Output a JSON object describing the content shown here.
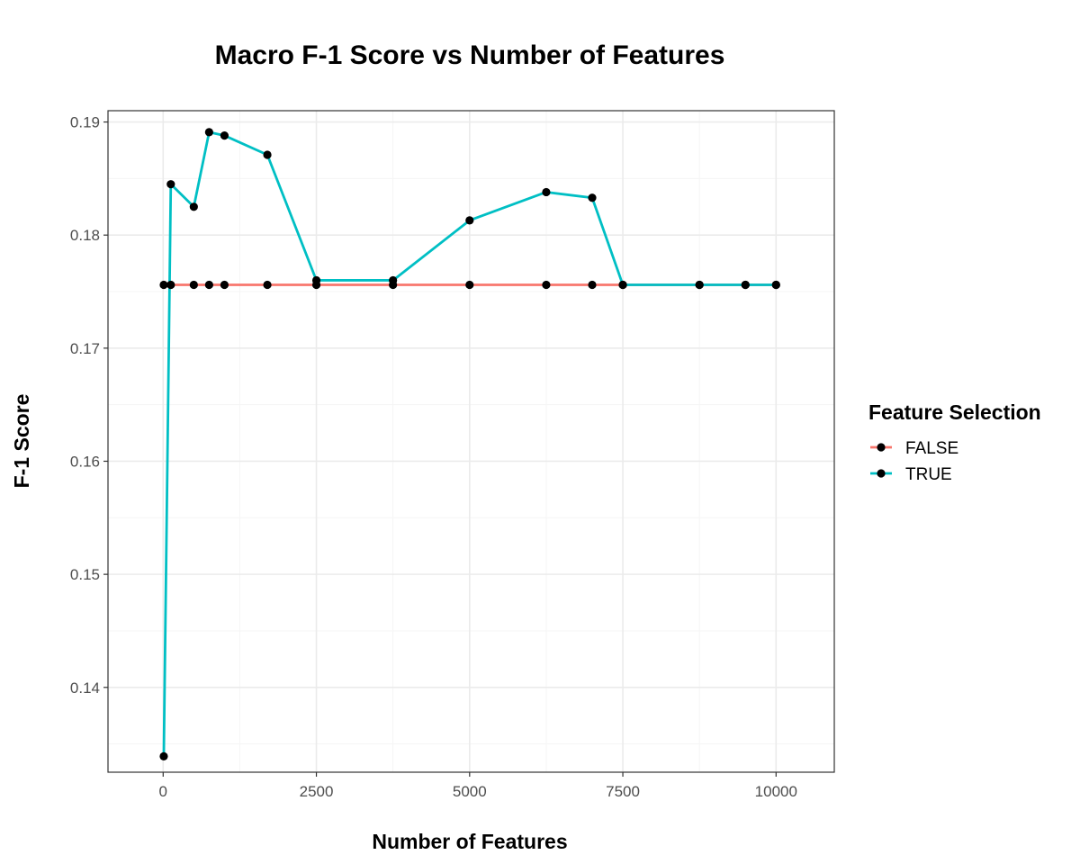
{
  "chart_data": {
    "type": "line",
    "title": "Macro F-1 Score vs Number of Features",
    "xlabel": "Number of Features",
    "ylabel": "F-1 Score",
    "xlim": [
      -900,
      10950
    ],
    "ylim": [
      0.1325,
      0.191
    ],
    "x_ticks": [
      0,
      2500,
      5000,
      7500,
      10000
    ],
    "x_tick_labels": [
      "0",
      "2500",
      "5000",
      "7500",
      "10000"
    ],
    "y_ticks": [
      0.14,
      0.15,
      0.16,
      0.17,
      0.18,
      0.19
    ],
    "y_tick_labels": [
      "0.14",
      "0.15",
      "0.16",
      "0.17",
      "0.18",
      "0.19"
    ],
    "grid": true,
    "legend": {
      "title": "Feature Selection",
      "position": "right"
    },
    "series": [
      {
        "name": "FALSE",
        "color": "#F8766D",
        "x": [
          10,
          125,
          500,
          750,
          1000,
          1700,
          2500,
          3750,
          5000,
          6250,
          7000,
          7500,
          8750,
          9500,
          10000
        ],
        "y": [
          0.1756,
          0.1756,
          0.1756,
          0.1756,
          0.1756,
          0.1756,
          0.1756,
          0.1756,
          0.1756,
          0.1756,
          0.1756,
          0.1756,
          0.1756,
          0.1756,
          0.1756
        ]
      },
      {
        "name": "TRUE",
        "color": "#00BFC4",
        "x": [
          10,
          125,
          500,
          750,
          1000,
          1700,
          2500,
          3750,
          5000,
          6250,
          7000,
          7500,
          8750,
          9500,
          10000
        ],
        "y": [
          0.1339,
          0.1845,
          0.1825,
          0.1891,
          0.1888,
          0.1871,
          0.176,
          0.176,
          0.1813,
          0.1838,
          0.1833,
          0.1756,
          0.1756,
          0.1756,
          0.1756
        ]
      }
    ]
  },
  "colors": {
    "panel_border": "#333333",
    "grid_major": "#ebebeb",
    "grid_minor": "#f5f5f5",
    "point": "#000000"
  }
}
